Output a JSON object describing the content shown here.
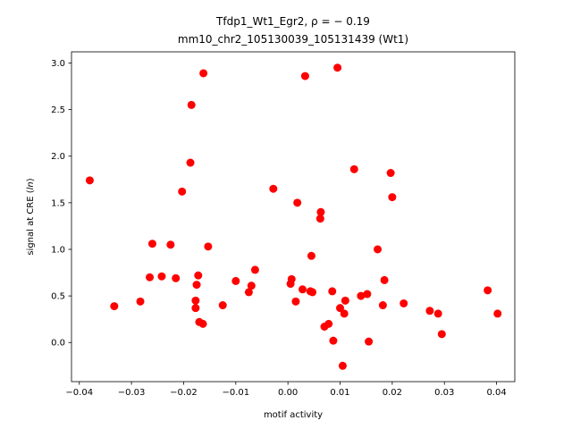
{
  "chart_data": {
    "type": "scatter",
    "title_line1": "Tfdp1_Wt1_Egr2, ρ = − 0.19",
    "title_line2": "mm10_chr2_105130039_105131439 (Wt1)",
    "xlabel": "motif activity",
    "ylabel_prefix": "signal at CRE (",
    "ylabel_italic": "ln",
    "ylabel_suffix": ")",
    "xlim": [
      -0.0415,
      0.0435
    ],
    "ylim": [
      -0.42,
      3.12
    ],
    "xticks": [
      {
        "value": -0.04,
        "label": "−0.04"
      },
      {
        "value": -0.03,
        "label": "−0.03"
      },
      {
        "value": -0.02,
        "label": "−0.02"
      },
      {
        "value": -0.01,
        "label": "−0.01"
      },
      {
        "value": 0.0,
        "label": "0.00"
      },
      {
        "value": 0.01,
        "label": "0.01"
      },
      {
        "value": 0.02,
        "label": "0.02"
      },
      {
        "value": 0.03,
        "label": "0.03"
      },
      {
        "value": 0.04,
        "label": "0.04"
      }
    ],
    "yticks": [
      {
        "value": 0.0,
        "label": "0.0"
      },
      {
        "value": 0.5,
        "label": "0.5"
      },
      {
        "value": 1.0,
        "label": "1.0"
      },
      {
        "value": 1.5,
        "label": "1.5"
      },
      {
        "value": 2.0,
        "label": "2.0"
      },
      {
        "value": 2.5,
        "label": "2.5"
      },
      {
        "value": 3.0,
        "label": "3.0"
      }
    ],
    "grid": false,
    "marker_color": "#ff0000",
    "points": [
      {
        "x": -0.038,
        "y": 1.74
      },
      {
        "x": -0.0333,
        "y": 0.39
      },
      {
        "x": -0.0283,
        "y": 0.44
      },
      {
        "x": -0.0265,
        "y": 0.7
      },
      {
        "x": -0.026,
        "y": 1.06
      },
      {
        "x": -0.0242,
        "y": 0.71
      },
      {
        "x": -0.0225,
        "y": 1.05
      },
      {
        "x": -0.0215,
        "y": 0.69
      },
      {
        "x": -0.0203,
        "y": 1.62
      },
      {
        "x": -0.0187,
        "y": 1.93
      },
      {
        "x": -0.0185,
        "y": 2.55
      },
      {
        "x": -0.0177,
        "y": 0.45
      },
      {
        "x": -0.0177,
        "y": 0.37
      },
      {
        "x": -0.0175,
        "y": 0.62
      },
      {
        "x": -0.0172,
        "y": 0.72
      },
      {
        "x": -0.017,
        "y": 0.22
      },
      {
        "x": -0.0163,
        "y": 0.2
      },
      {
        "x": -0.0162,
        "y": 2.89
      },
      {
        "x": -0.0153,
        "y": 1.03
      },
      {
        "x": -0.0125,
        "y": 0.4
      },
      {
        "x": -0.01,
        "y": 0.66
      },
      {
        "x": -0.0075,
        "y": 0.54
      },
      {
        "x": -0.007,
        "y": 0.61
      },
      {
        "x": -0.0063,
        "y": 0.78
      },
      {
        "x": -0.0028,
        "y": 1.65
      },
      {
        "x": 0.0005,
        "y": 0.63
      },
      {
        "x": 0.0007,
        "y": 0.68
      },
      {
        "x": 0.0015,
        "y": 0.44
      },
      {
        "x": 0.0018,
        "y": 1.5
      },
      {
        "x": 0.0028,
        "y": 0.57
      },
      {
        "x": 0.0033,
        "y": 2.86
      },
      {
        "x": 0.0043,
        "y": 0.55
      },
      {
        "x": 0.0045,
        "y": 0.93
      },
      {
        "x": 0.0047,
        "y": 0.54
      },
      {
        "x": 0.0062,
        "y": 1.33
      },
      {
        "x": 0.0063,
        "y": 1.4
      },
      {
        "x": 0.007,
        "y": 0.17
      },
      {
        "x": 0.0078,
        "y": 0.2
      },
      {
        "x": 0.0085,
        "y": 0.55
      },
      {
        "x": 0.0087,
        "y": 0.02
      },
      {
        "x": 0.0095,
        "y": 2.95
      },
      {
        "x": 0.01,
        "y": 0.37
      },
      {
        "x": 0.0105,
        "y": -0.25
      },
      {
        "x": 0.0108,
        "y": 0.31
      },
      {
        "x": 0.011,
        "y": 0.45
      },
      {
        "x": 0.0127,
        "y": 1.86
      },
      {
        "x": 0.014,
        "y": 0.5
      },
      {
        "x": 0.0152,
        "y": 0.52
      },
      {
        "x": 0.0155,
        "y": 0.01
      },
      {
        "x": 0.0172,
        "y": 1.0
      },
      {
        "x": 0.0182,
        "y": 0.4
      },
      {
        "x": 0.0185,
        "y": 0.67
      },
      {
        "x": 0.0197,
        "y": 1.82
      },
      {
        "x": 0.02,
        "y": 1.56
      },
      {
        "x": 0.0222,
        "y": 0.42
      },
      {
        "x": 0.0272,
        "y": 0.34
      },
      {
        "x": 0.0288,
        "y": 0.31
      },
      {
        "x": 0.0295,
        "y": 0.09
      },
      {
        "x": 0.0383,
        "y": 0.56
      },
      {
        "x": 0.0402,
        "y": 0.31
      }
    ]
  }
}
